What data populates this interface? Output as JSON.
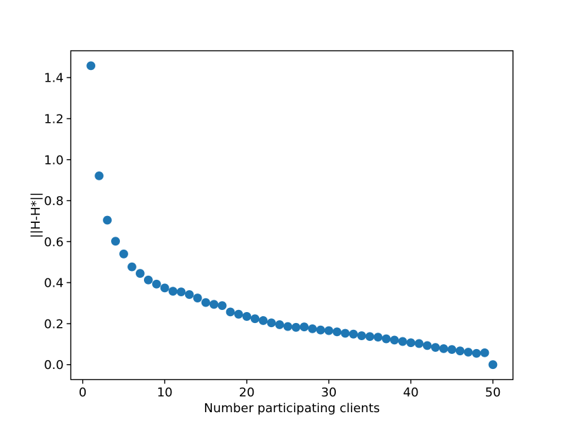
{
  "figure": {
    "background": "#ffffff"
  },
  "chart_data": {
    "type": "scatter",
    "title": "",
    "xlabel": "Number participating clients",
    "ylabel": "||H-H*||",
    "marker_color": "#1f77b4",
    "marker_shape": "circle",
    "axis_color": "#000000",
    "grid": false,
    "legend": null,
    "xlim": [
      -1.45,
      52.45
    ],
    "ylim": [
      -0.0729,
      1.5312
    ],
    "xticks": {
      "values": [
        0,
        10,
        20,
        30,
        40,
        50
      ],
      "labels": [
        "0",
        "10",
        "20",
        "30",
        "40",
        "50"
      ]
    },
    "yticks": {
      "values": [
        0.0,
        0.2,
        0.4,
        0.6,
        0.8,
        1.0,
        1.2,
        1.4
      ],
      "labels": [
        "0.0",
        "0.2",
        "0.4",
        "0.6",
        "0.8",
        "1.0",
        "1.2",
        "1.4"
      ]
    },
    "x": [
      1,
      2,
      3,
      4,
      5,
      6,
      7,
      8,
      9,
      10,
      11,
      12,
      13,
      14,
      15,
      16,
      17,
      18,
      19,
      20,
      21,
      22,
      23,
      24,
      25,
      26,
      27,
      28,
      29,
      30,
      31,
      32,
      33,
      34,
      35,
      36,
      37,
      38,
      39,
      40,
      41,
      42,
      43,
      44,
      45,
      46,
      47,
      48,
      49,
      50
    ],
    "y": [
      1.458,
      0.921,
      0.705,
      0.602,
      0.54,
      0.477,
      0.445,
      0.413,
      0.393,
      0.374,
      0.358,
      0.355,
      0.342,
      0.325,
      0.303,
      0.294,
      0.288,
      0.257,
      0.246,
      0.235,
      0.224,
      0.215,
      0.204,
      0.195,
      0.186,
      0.182,
      0.184,
      0.175,
      0.169,
      0.166,
      0.16,
      0.153,
      0.149,
      0.141,
      0.137,
      0.134,
      0.126,
      0.12,
      0.113,
      0.107,
      0.103,
      0.093,
      0.084,
      0.078,
      0.074,
      0.067,
      0.061,
      0.055,
      0.058,
      0.0
    ]
  }
}
